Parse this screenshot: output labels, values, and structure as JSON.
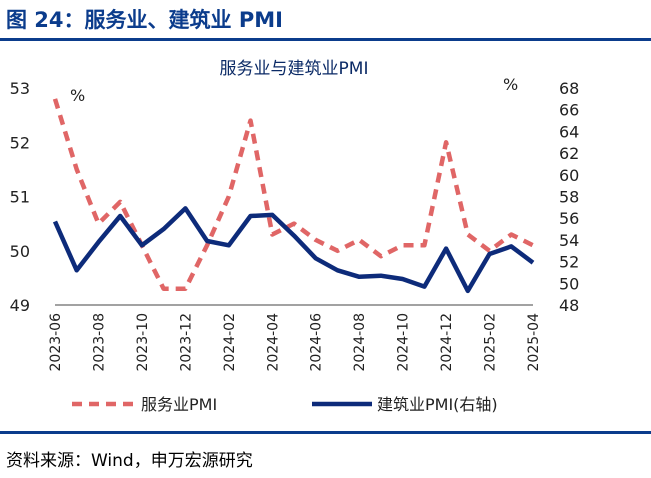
{
  "figure": {
    "title": "图 24：服务业、建筑业 PMI",
    "source": "资料来源：Wind，申万宏源研究"
  },
  "colors": {
    "title_blue": "#0b3c8c",
    "series_services": "#e06666",
    "series_construction": "#0d2b7a"
  },
  "chart_data": {
    "type": "line",
    "title": "服务业与建筑业PMI",
    "left_axis": {
      "unit": "%",
      "ylim": [
        49,
        53
      ],
      "ticks": [
        49,
        50,
        51,
        52,
        53
      ]
    },
    "right_axis": {
      "unit": "%",
      "ylim": [
        48,
        68
      ],
      "ticks": [
        48,
        50,
        52,
        54,
        56,
        58,
        60,
        62,
        64,
        66,
        68
      ]
    },
    "x": [
      "2023-06",
      "2023-07",
      "2023-08",
      "2023-09",
      "2023-10",
      "2023-11",
      "2023-12",
      "2024-01",
      "2024-02",
      "2024-03",
      "2024-04",
      "2024-05",
      "2024-06",
      "2024-07",
      "2024-08",
      "2024-09",
      "2024-10",
      "2024-11",
      "2024-12",
      "2025-01",
      "2025-02",
      "2025-03",
      "2025-04"
    ],
    "x_tick_labels": [
      "2023-06",
      "2023-08",
      "2023-10",
      "2023-12",
      "2024-02",
      "2024-04",
      "2024-06",
      "2024-08",
      "2024-10",
      "2024-12",
      "2025-02",
      "2025-04"
    ],
    "series": [
      {
        "name": "服务业PMI",
        "axis": "left",
        "style": "dashed",
        "values": [
          52.8,
          51.5,
          50.5,
          50.9,
          50.1,
          49.3,
          49.3,
          50.1,
          51.0,
          52.4,
          50.3,
          50.5,
          50.2,
          50.0,
          50.2,
          49.9,
          50.1,
          50.1,
          52.0,
          50.3,
          50.0,
          50.3,
          50.1
        ]
      },
      {
        "name": "建筑业PMI(右轴)",
        "axis": "right",
        "style": "solid",
        "values": [
          55.7,
          51.2,
          53.8,
          56.2,
          53.5,
          55.0,
          56.9,
          53.9,
          53.5,
          56.2,
          56.3,
          54.4,
          52.3,
          51.2,
          50.6,
          50.7,
          50.4,
          49.7,
          53.2,
          49.3,
          52.7,
          53.4,
          51.9
        ]
      }
    ]
  }
}
